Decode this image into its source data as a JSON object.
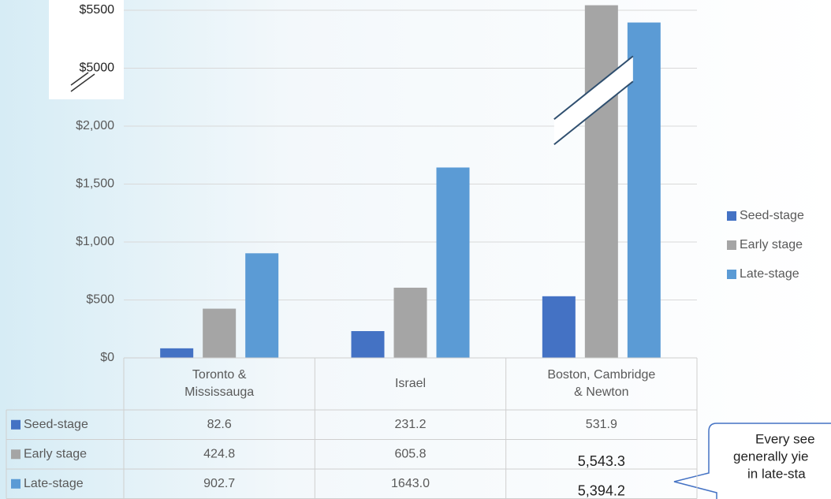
{
  "chart_data": {
    "type": "bar",
    "categories": [
      "Toronto & Mississauga",
      "Israel",
      "Boston, Cambridge & Newton"
    ],
    "series": [
      {
        "name": "Seed-stage",
        "color": "#4472c4",
        "values": [
          82.6,
          231.2,
          531.9
        ],
        "value_labels": [
          "82.6",
          "231.2",
          "531.9"
        ]
      },
      {
        "name": "Early stage",
        "color": "#a5a5a5",
        "values": [
          424.8,
          605.8,
          5543.3
        ],
        "value_labels": [
          "424.8",
          "605.8",
          "5,543.3"
        ]
      },
      {
        "name": "Late-stage",
        "color": "#5b9bd5",
        "values": [
          902.7,
          1643.0,
          5394.2
        ],
        "value_labels": [
          "902.7",
          "1643.0",
          "5,394.2"
        ]
      }
    ],
    "ylim": [
      0,
      5600
    ],
    "axis_break": [
      2250,
      4750
    ],
    "yticks": [
      {
        "value": 0,
        "label": "$0"
      },
      {
        "value": 500,
        "label": "$500"
      },
      {
        "value": 1000,
        "label": "$1,000"
      },
      {
        "value": 1500,
        "label": "$1,500"
      },
      {
        "value": 2000,
        "label": "$2,000"
      },
      {
        "value": 5000,
        "label": "$5000"
      },
      {
        "value": 5500,
        "label": "$5500"
      }
    ],
    "grid": true,
    "legend": "right",
    "data_table": true,
    "annotation": [
      "Every see",
      "generally yie",
      "in late-sta"
    ]
  }
}
